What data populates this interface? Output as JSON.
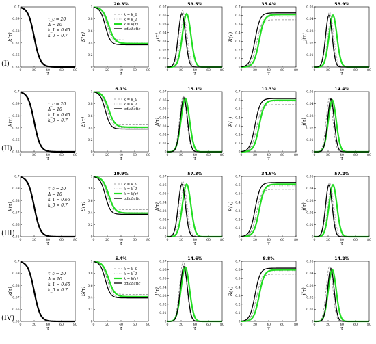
{
  "chart_data": {
    "type": "line",
    "x_range": [
      0,
      80
    ],
    "x_ticks": [
      0,
      20,
      40,
      60,
      80
    ],
    "xlabel": "τ",
    "params": [
      "τ_c = 20",
      "Δ = 10",
      "k_1 = 0.65",
      "k_0 = 0.7"
    ],
    "legend": {
      "full": [
        "k = k_0",
        "k = k_1",
        "k = k(τ)",
        "adiabatic"
      ],
      "no_kt": [
        "k = k_0",
        "k = k_1",
        "adiabatic"
      ]
    },
    "row_labels": [
      "(I)",
      "(II)",
      "(III)",
      "(IV)"
    ],
    "series_colors": {
      "k0": "#888888",
      "k1": "#888888",
      "kt": "#22dd22",
      "adiabatic": "#000000"
    },
    "columns": [
      {
        "ylabel": "k(τ)",
        "ylim": [
          0.65,
          0.7
        ],
        "yticks": [
          "0.65",
          "0.66",
          "0.67",
          "0.68",
          "0.69",
          "0.7"
        ]
      },
      {
        "ylabel": "S(τ)",
        "ylim": [
          0,
          1
        ],
        "yticks": [
          "0",
          "0.2",
          "0.4",
          "0.6",
          "0.8",
          "1"
        ]
      },
      {
        "ylabel": "I(τ)",
        "ylim": [
          0,
          0.07
        ],
        "yticks": [
          "0",
          "0.01",
          "0.02",
          "0.03",
          "0.04",
          "0.05",
          "0.06",
          "0.07"
        ]
      },
      {
        "ylabel": "R(τ)",
        "ylim": [
          0,
          0.7
        ],
        "yticks": [
          "0",
          "0.1",
          "0.2",
          "0.3",
          "0.4",
          "0.5",
          "0.6",
          "0.7"
        ]
      },
      {
        "ylabel": "j(τ)",
        "ylim": [
          0,
          0.05
        ],
        "yticks": [
          "0",
          "0.01",
          "0.02",
          "0.03",
          "0.04",
          "0.05"
        ]
      }
    ],
    "rows": [
      {
        "label": "(I)",
        "percentages": [
          "20.3%",
          "59.5%",
          "35.4%",
          "58.9%"
        ],
        "legend": "full",
        "S_final": {
          "k0": 0.45,
          "k1": 0.4,
          "kt": 0.39,
          "adiabatic": 0.37
        },
        "I_peak": {
          "k0": [
            22,
            0.066
          ],
          "k1": [
            24,
            0.058
          ],
          "kt": [
            28,
            0.062
          ],
          "adiabatic": [
            21,
            0.062
          ]
        },
        "R_final": {
          "k0": 0.55,
          "k1": 0.59,
          "kt": 0.61,
          "adiabatic": 0.63
        },
        "j_peak": {
          "k0": [
            22,
            0.046
          ],
          "k1": [
            24,
            0.04
          ],
          "kt": [
            27,
            0.043
          ],
          "adiabatic": [
            21,
            0.043
          ]
        }
      },
      {
        "label": "(II)",
        "percentages": [
          "6.1%",
          "15.1%",
          "10.3%",
          "14.4%"
        ],
        "legend": "no_kt",
        "S_final": {
          "k0": 0.45,
          "k1": 0.4,
          "kt": 0.41,
          "adiabatic": 0.38
        },
        "I_peak": {
          "k0": [
            23,
            0.065
          ],
          "k1": [
            24,
            0.059
          ],
          "kt": [
            26,
            0.062
          ],
          "adiabatic": [
            24,
            0.063
          ]
        },
        "R_final": {
          "k0": 0.55,
          "k1": 0.59,
          "kt": 0.6,
          "adiabatic": 0.62
        },
        "j_peak": {
          "k0": [
            22,
            0.045
          ],
          "k1": [
            24,
            0.04
          ],
          "kt": [
            26,
            0.043
          ],
          "adiabatic": [
            24,
            0.044
          ]
        }
      },
      {
        "label": "(III)",
        "percentages": [
          "19.9%",
          "57.3%",
          "34.6%",
          "57.2%"
        ],
        "legend": "full",
        "S_final": {
          "k0": 0.45,
          "k1": 0.4,
          "kt": 0.39,
          "adiabatic": 0.37
        },
        "I_peak": {
          "k0": [
            22,
            0.065
          ],
          "k1": [
            24,
            0.058
          ],
          "kt": [
            28,
            0.061
          ],
          "adiabatic": [
            21,
            0.061
          ]
        },
        "R_final": {
          "k0": 0.55,
          "k1": 0.59,
          "kt": 0.61,
          "adiabatic": 0.63
        },
        "j_peak": {
          "k0": [
            22,
            0.045
          ],
          "k1": [
            24,
            0.04
          ],
          "kt": [
            27,
            0.043
          ],
          "adiabatic": [
            21,
            0.043
          ]
        }
      },
      {
        "label": "(IV)",
        "percentages": [
          "5.4%",
          "14.6%",
          "8.8%",
          "14.2%"
        ],
        "legend": "full",
        "S_final": {
          "k0": 0.45,
          "k1": 0.4,
          "kt": 0.41,
          "adiabatic": 0.39
        },
        "I_peak": {
          "k0": [
            23,
            0.07
          ],
          "k1": [
            24,
            0.06
          ],
          "kt": [
            26,
            0.063
          ],
          "adiabatic": [
            24,
            0.064
          ]
        },
        "R_final": {
          "k0": 0.55,
          "k1": 0.59,
          "kt": 0.6,
          "adiabatic": 0.62
        },
        "j_peak": {
          "k0": [
            22,
            0.046
          ],
          "k1": [
            24,
            0.04
          ],
          "kt": [
            26,
            0.043
          ],
          "adiabatic": [
            24,
            0.044
          ]
        }
      }
    ]
  }
}
